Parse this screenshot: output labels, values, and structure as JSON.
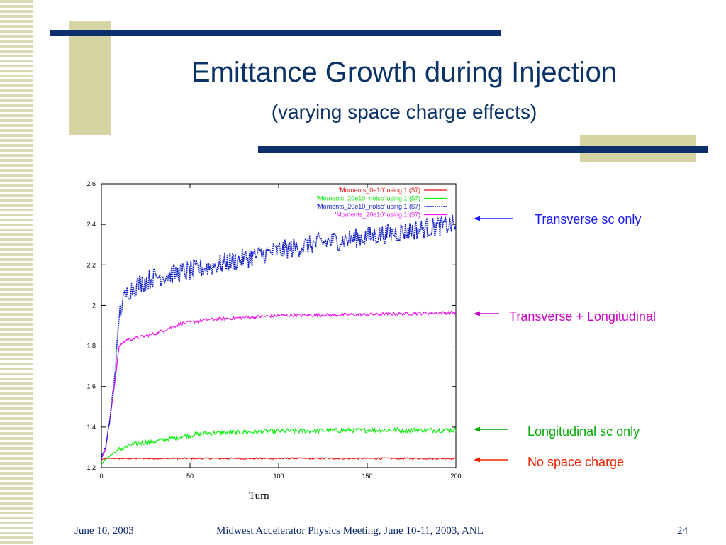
{
  "slide": {
    "title": "Emittance Growth during Injection",
    "subtitle": "(varying space charge effects)"
  },
  "footer": {
    "date": "June 10, 2003",
    "meeting": "Midwest Accelerator Physics Meeting, June 10-11, 2003, ANL",
    "page": "24"
  },
  "colors": {
    "accent": "#0d2f6b",
    "deco": "#d6d4a2",
    "red": "#ee1111",
    "green": "#11ee11",
    "blue": "#1522cc",
    "magenta": "#ee11ee",
    "annot_blue": "#1a1aff",
    "annot_magenta": "#cc00cc",
    "annot_green": "#00aa00",
    "annot_red": "#ee2200"
  },
  "annotations": [
    {
      "text": "Transverse sc only",
      "color": "#1a1aff"
    },
    {
      "text": "Transverse + Longitudinal",
      "color": "#cc00cc"
    },
    {
      "text": "Longitudinal sc only",
      "color": "#00aa00"
    },
    {
      "text": "No space charge",
      "color": "#ee2200"
    }
  ],
  "chart_data": {
    "type": "line",
    "xlabel": "Turn",
    "ylabel": "",
    "xlim": [
      0,
      200
    ],
    "ylim": [
      1.2,
      2.6
    ],
    "xticks": [
      0,
      50,
      100,
      150,
      200
    ],
    "yticks": [
      1.2,
      1.4,
      1.6,
      1.8,
      2,
      2.2,
      2.4,
      2.6
    ],
    "legend_position": "top-right",
    "grid": false,
    "series": [
      {
        "name": "'Moments_0e10' using 1:($7)",
        "color": "#ee1111",
        "style": "solid",
        "points": [
          [
            0,
            1.24
          ],
          [
            3,
            1.245
          ],
          [
            5,
            1.245
          ],
          [
            200,
            1.245
          ]
        ],
        "noise": 0.004
      },
      {
        "name": "'Moments_20e10_nolsc' using 1:($7)",
        "color": "#11ee11",
        "style": "solid",
        "points": [
          [
            0,
            1.22
          ],
          [
            5,
            1.26
          ],
          [
            10,
            1.29
          ],
          [
            20,
            1.32
          ],
          [
            30,
            1.33
          ],
          [
            50,
            1.36
          ],
          [
            60,
            1.37
          ],
          [
            100,
            1.38
          ],
          [
            150,
            1.385
          ],
          [
            200,
            1.385
          ]
        ],
        "noise": 0.012
      },
      {
        "name": "'Moments_20e10_nolsc' using 1:($7)",
        "color": "#1522cc",
        "style": "dotted",
        "points": [
          [
            0,
            1.25
          ],
          [
            2,
            1.28
          ],
          [
            5,
            1.45
          ],
          [
            8,
            1.7
          ],
          [
            10,
            1.95
          ],
          [
            12,
            2.02
          ],
          [
            15,
            2.07
          ],
          [
            20,
            2.1
          ],
          [
            30,
            2.14
          ],
          [
            50,
            2.17
          ],
          [
            75,
            2.22
          ],
          [
            100,
            2.27
          ],
          [
            125,
            2.31
          ],
          [
            150,
            2.34
          ],
          [
            175,
            2.37
          ],
          [
            200,
            2.4
          ]
        ],
        "noise": 0.05
      },
      {
        "name": "'Moments_20e10' using 1:($7)",
        "color": "#ee11ee",
        "style": "solid",
        "points": [
          [
            0,
            1.25
          ],
          [
            2,
            1.28
          ],
          [
            5,
            1.45
          ],
          [
            8,
            1.65
          ],
          [
            10,
            1.8
          ],
          [
            14,
            1.83
          ],
          [
            20,
            1.84
          ],
          [
            30,
            1.86
          ],
          [
            45,
            1.91
          ],
          [
            60,
            1.93
          ],
          [
            80,
            1.94
          ],
          [
            100,
            1.95
          ],
          [
            150,
            1.955
          ],
          [
            200,
            1.965
          ]
        ],
        "noise": 0.008
      }
    ]
  }
}
